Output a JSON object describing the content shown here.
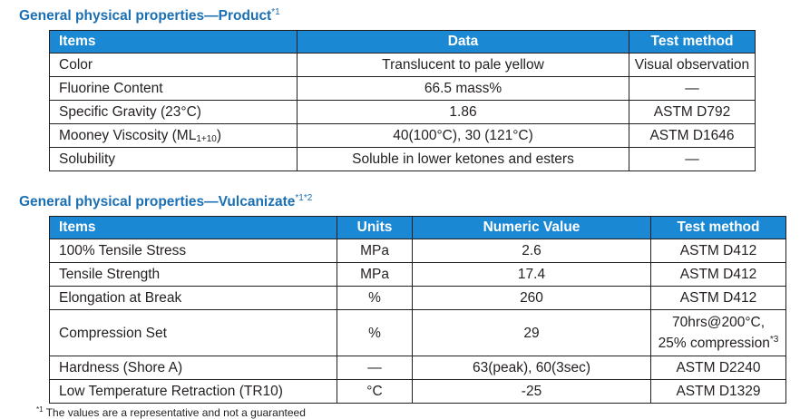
{
  "product": {
    "heading": "General physical properties—Product",
    "heading_note": "*1",
    "headers": [
      "Items",
      "Data",
      "Test method"
    ],
    "rows": [
      {
        "item": "Color",
        "data": "Translucent to pale yellow",
        "method": "Visual observation"
      },
      {
        "item": "Fluorine Content",
        "data": "66.5 mass%",
        "method": "—"
      },
      {
        "item": "Specific Gravity (23°C)",
        "data": "1.86",
        "method": "ASTM D792"
      },
      {
        "item": "Mooney Viscosity (ML",
        "item_sub": "1+10",
        "item_tail": ")",
        "data": "40(100°C), 30 (121°C)",
        "method": "ASTM D1646"
      },
      {
        "item": "Solubility",
        "data": "Soluble in lower ketones and esters",
        "method": "—"
      }
    ]
  },
  "vulcanizate": {
    "heading": "General physical properties—Vulcanizate",
    "heading_note": "*1*2",
    "headers": [
      "Items",
      "Units",
      "Numeric Value",
      "Test method"
    ],
    "rows": [
      {
        "item": "100% Tensile Stress",
        "units": "MPa",
        "value": "2.6",
        "method": "ASTM D412"
      },
      {
        "item": "Tensile Strength",
        "units": "MPa",
        "value": "17.4",
        "method": "ASTM D412"
      },
      {
        "item": "Elongation at Break",
        "units": "%",
        "value": "260",
        "method": "ASTM D412"
      },
      {
        "item": "Compression Set",
        "units": "%",
        "value": "29",
        "method_line1": "70hrs@200°C,",
        "method_line2": "25% compression",
        "method_note": "*3"
      },
      {
        "item": "Hardness (Shore A)",
        "units": "—",
        "value": "63(peak), 60(3sec)",
        "method": "ASTM D2240"
      },
      {
        "item": "Low Temperature Retraction (TR10)",
        "units": "°C",
        "value": "-25",
        "method": "ASTM D1329"
      }
    ]
  },
  "footnote": {
    "marker": "*1",
    "text": "The values are a representative and not a guaranteed"
  }
}
